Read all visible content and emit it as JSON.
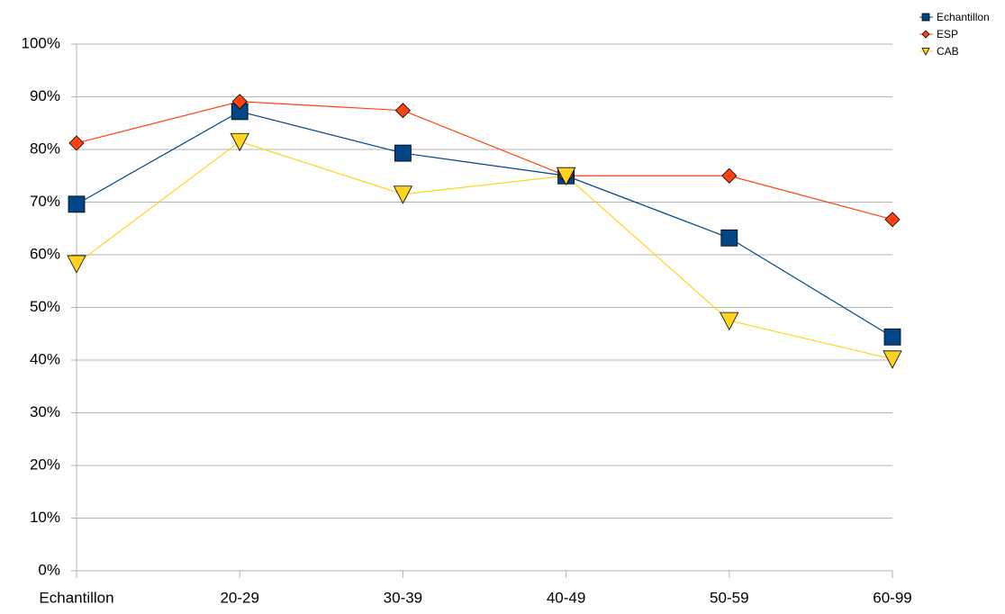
{
  "chart_data": {
    "type": "line",
    "categories": [
      "Echantillon",
      "20-29",
      "30-39",
      "40-49",
      "50-59",
      "60-99"
    ],
    "series": [
      {
        "name": "Echantillon",
        "color": "#004586",
        "marker": "square",
        "values": [
          69.6,
          87.2,
          79.3,
          75,
          63.2,
          44.4
        ]
      },
      {
        "name": "ESP",
        "color": "#ff420e",
        "marker": "diamond",
        "values": [
          81.2,
          89.1,
          87.4,
          75,
          75,
          66.7
        ]
      },
      {
        "name": "CAB",
        "color": "#ffd320",
        "marker": "triangle-down",
        "values": [
          58.3,
          81.5,
          71.5,
          75,
          47.5,
          40.2
        ]
      }
    ],
    "ylim": [
      0,
      100
    ],
    "yticks": [
      {
        "value": 0,
        "label": "0%"
      },
      {
        "value": 10,
        "label": "10%"
      },
      {
        "value": 20,
        "label": "20%"
      },
      {
        "value": 30,
        "label": "30%"
      },
      {
        "value": 40,
        "label": "40%"
      },
      {
        "value": 50,
        "label": "50%"
      },
      {
        "value": 60,
        "label": "60%"
      },
      {
        "value": 70,
        "label": "70%"
      },
      {
        "value": 80,
        "label": "80%"
      },
      {
        "value": 90,
        "label": "90%"
      },
      {
        "value": 100,
        "label": "100%"
      }
    ],
    "grid": true,
    "legend": "top-right"
  }
}
